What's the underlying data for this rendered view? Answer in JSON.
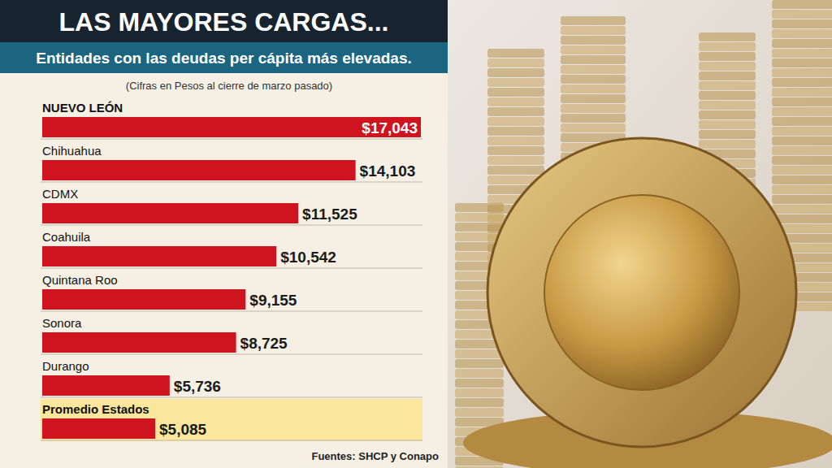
{
  "chart_data": {
    "type": "bar",
    "orientation": "horizontal",
    "title": "LAS MAYORES CARGAS...",
    "subtitle": "Entidades con las deudas per cápita más elevadas.",
    "note": "(Cifras en Pesos al cierre de marzo pasado)",
    "source": "Fuentes: SHCP y Conapo",
    "categories": [
      "NUEVO LEÓN",
      "Chihuahua",
      "CDMX",
      "Coahuila",
      "Quintana Roo",
      "Sonora",
      "Durango",
      "Promedio Estados"
    ],
    "values": [
      17043,
      14103,
      11525,
      10542,
      9155,
      8725,
      5736,
      5085
    ],
    "value_labels": [
      "$17,043",
      "$14,103",
      "$11,525",
      "$10,542",
      "$9,155",
      "$8,725",
      "$5,736",
      "$5,085"
    ],
    "color": "#cf1420",
    "xlim": [
      0,
      17043
    ],
    "data_labels": true,
    "tick_labels": false,
    "grid": false
  }
}
